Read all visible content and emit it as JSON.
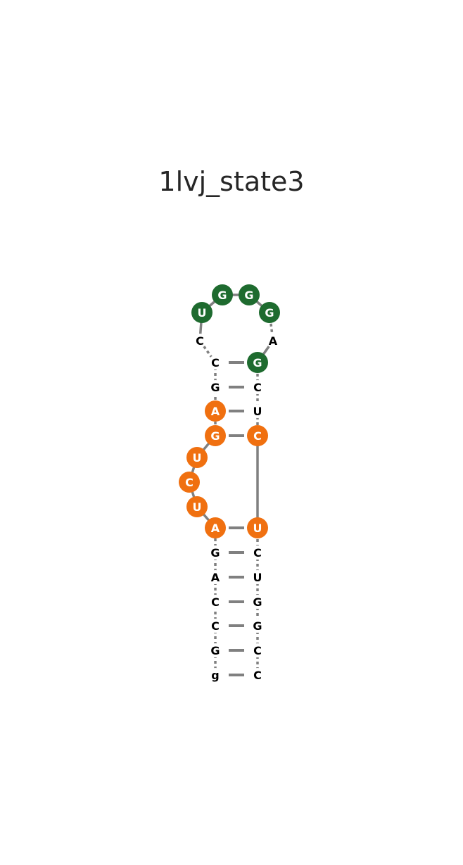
{
  "title": "1lvj_state3",
  "colors": {
    "backbone": "#808080",
    "pair": "#808080",
    "green": "#1e6b2f",
    "orange": "#f07010",
    "plain_text": "#000000",
    "marked_text": "#ffffff"
  },
  "nucleotides": [
    {
      "base": "g",
      "mark": "none"
    },
    {
      "base": "G",
      "mark": "none"
    },
    {
      "base": "C",
      "mark": "none"
    },
    {
      "base": "C",
      "mark": "none"
    },
    {
      "base": "A",
      "mark": "none"
    },
    {
      "base": "G",
      "mark": "none"
    },
    {
      "base": "A",
      "mark": "orange"
    },
    {
      "base": "U",
      "mark": "orange"
    },
    {
      "base": "C",
      "mark": "orange"
    },
    {
      "base": "U",
      "mark": "orange"
    },
    {
      "base": "G",
      "mark": "orange"
    },
    {
      "base": "A",
      "mark": "orange"
    },
    {
      "base": "G",
      "mark": "none"
    },
    {
      "base": "C",
      "mark": "none"
    },
    {
      "base": "C",
      "mark": "none"
    },
    {
      "base": "U",
      "mark": "green"
    },
    {
      "base": "G",
      "mark": "green"
    },
    {
      "base": "G",
      "mark": "green"
    },
    {
      "base": "G",
      "mark": "green"
    },
    {
      "base": "A",
      "mark": "none"
    },
    {
      "base": "G",
      "mark": "green"
    },
    {
      "base": "C",
      "mark": "none"
    },
    {
      "base": "U",
      "mark": "none"
    },
    {
      "base": "C",
      "mark": "orange"
    },
    {
      "base": "U",
      "mark": "orange"
    },
    {
      "base": "C",
      "mark": "none"
    },
    {
      "base": "U",
      "mark": "none"
    },
    {
      "base": "G",
      "mark": "none"
    },
    {
      "base": "G",
      "mark": "none"
    },
    {
      "base": "C",
      "mark": "none"
    },
    {
      "base": "C",
      "mark": "none"
    }
  ],
  "pairs": [
    [
      0,
      30
    ],
    [
      1,
      29
    ],
    [
      2,
      28
    ],
    [
      3,
      27
    ],
    [
      4,
      26
    ],
    [
      5,
      25
    ],
    [
      6,
      24
    ],
    [
      10,
      23
    ],
    [
      11,
      22
    ],
    [
      12,
      21
    ],
    [
      13,
      20
    ]
  ],
  "solid_backbone": [
    [
      6,
      7
    ],
    [
      7,
      8
    ],
    [
      8,
      9
    ],
    [
      9,
      10
    ],
    [
      14,
      15
    ],
    [
      15,
      16
    ],
    [
      16,
      17
    ],
    [
      17,
      18
    ],
    [
      19,
      20
    ],
    [
      23,
      24
    ]
  ]
}
